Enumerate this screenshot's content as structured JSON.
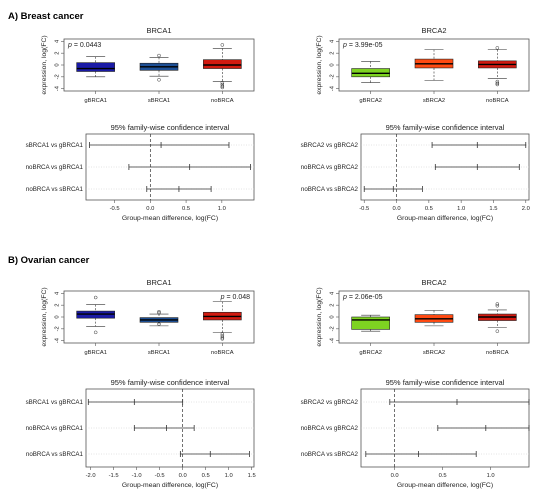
{
  "sections": [
    {
      "title": "A) Breast cancer",
      "panels": [
        {
          "box": {
            "title": "BRCA1",
            "pvalue_italic": "p",
            "pvalue_rest": " = 0.0443",
            "pvalue_pos": "top-left",
            "ylabel": "expression, log(FC)",
            "ylim": [
              -4.4,
              4.4
            ],
            "yticks": [
              "-4",
              "-2",
              "0",
              "2",
              "4"
            ],
            "categories": [
              "gBRCA1",
              "sBRCA1",
              "noBRCA"
            ],
            "colors": [
              "#1a1aa6",
              "#1d4f95",
              "#d21a10"
            ],
            "boxes": [
              {
                "low": -2.0,
                "q1": -1.1,
                "median": -0.6,
                "q3": 0.4,
                "high": 1.4,
                "outliers": []
              },
              {
                "low": -1.9,
                "q1": -0.9,
                "median": -0.3,
                "q3": 0.3,
                "high": 1.3,
                "outliers": [
                  1.6,
                  -2.5
                ]
              },
              {
                "low": -2.8,
                "q1": -0.6,
                "median": 0.0,
                "q3": 0.9,
                "high": 2.8,
                "outliers": [
                  3.4,
                  -3.0,
                  -3.3,
                  -3.6,
                  -3.8
                ]
              }
            ]
          },
          "ci": {
            "title": "95% family-wise confidence interval",
            "xlabel": "Group-mean difference, log(FC)",
            "xlim": [
              -0.9,
              1.45
            ],
            "xticks": [
              "-0.5",
              "0.0",
              "0.5",
              "1.0"
            ],
            "comparisons": [
              {
                "label": "sBRCA1 vs gBRCA1",
                "low": -0.85,
                "est": 0.15,
                "high": 1.1
              },
              {
                "label": "noBRCA vs gBRCA1",
                "low": -0.3,
                "est": 0.55,
                "high": 1.4
              },
              {
                "label": "noBRCA vs sBRCA1",
                "low": -0.05,
                "est": 0.4,
                "high": 0.85
              }
            ]
          }
        },
        {
          "box": {
            "title": "BRCA2",
            "pvalue_italic": "p",
            "pvalue_rest": " = 3.99e-05",
            "pvalue_pos": "top-left",
            "ylabel": "expression, log(FC)",
            "ylim": [
              -4.4,
              4.4
            ],
            "yticks": [
              "-4",
              "-2",
              "0",
              "2",
              "4"
            ],
            "categories": [
              "gBRCA2",
              "sBRCA2",
              "noBRCA"
            ],
            "colors": [
              "#7ed321",
              "#ff4a12",
              "#d21a10"
            ],
            "boxes": [
              {
                "low": -3.0,
                "q1": -2.0,
                "median": -1.4,
                "q3": -0.6,
                "high": 0.6,
                "outliers": []
              },
              {
                "low": -2.6,
                "q1": -0.5,
                "median": 0.2,
                "q3": 1.0,
                "high": 2.6,
                "outliers": []
              },
              {
                "low": -2.3,
                "q1": -0.5,
                "median": 0.1,
                "q3": 0.7,
                "high": 2.6,
                "outliers": [
                  2.9,
                  -2.8,
                  -3.1,
                  -3.3
                ]
              }
            ]
          },
          "ci": {
            "title": "95% family-wise confidence interval",
            "xlabel": "Group-mean difference, log(FC)",
            "xlim": [
              -0.55,
              2.05
            ],
            "xticks": [
              "-0.5",
              "0.0",
              "0.5",
              "1.0",
              "1.5",
              "2.0"
            ],
            "comparisons": [
              {
                "label": "sBRCA2 vs gBRCA2",
                "low": 0.55,
                "est": 1.25,
                "high": 2.0
              },
              {
                "label": "noBRCA vs gBRCA2",
                "low": 0.6,
                "est": 1.25,
                "high": 1.9
              },
              {
                "label": "noBRCA vs sBRCA2",
                "low": -0.5,
                "est": -0.05,
                "high": 0.4
              }
            ]
          }
        }
      ]
    },
    {
      "title": "B) Ovarian cancer",
      "panels": [
        {
          "box": {
            "title": "BRCA1",
            "pvalue_italic": "p",
            "pvalue_rest": " = 0.048",
            "pvalue_pos": "top-right",
            "ylabel": "expression, log(FC)",
            "ylim": [
              -4.4,
              4.4
            ],
            "yticks": [
              "-4",
              "-2",
              "0",
              "2",
              "4"
            ],
            "categories": [
              "gBRCA1",
              "sBRCA1",
              "noBRCA"
            ],
            "colors": [
              "#1a1aa6",
              "#1d4f95",
              "#d21a10"
            ],
            "boxes": [
              {
                "low": -1.6,
                "q1": -0.2,
                "median": 0.5,
                "q3": 1.0,
                "high": 2.1,
                "outliers": [
                  3.3,
                  -2.6
                ]
              },
              {
                "low": -1.5,
                "q1": -0.9,
                "median": -0.5,
                "q3": -0.1,
                "high": 0.5,
                "outliers": [
                  0.9,
                  0.7,
                  -1.2
                ]
              },
              {
                "low": -2.6,
                "q1": -0.5,
                "median": 0.1,
                "q3": 0.8,
                "high": 2.6,
                "outliers": [
                  -2.9,
                  -3.2,
                  -3.5,
                  -3.7
                ]
              }
            ]
          },
          "ci": {
            "title": "95% family-wise confidence interval",
            "xlabel": "Group-mean difference, log(FC)",
            "xlim": [
              -2.1,
              1.55
            ],
            "xticks": [
              "-2.0",
              "-1.5",
              "-1.0",
              "-0.5",
              "0.0",
              "0.5",
              "1.0",
              "1.5"
            ],
            "comparisons": [
              {
                "label": "sBRCA1 vs gBRCA1",
                "low": -2.05,
                "est": -1.05,
                "high": 0.0
              },
              {
                "label": "noBRCA vs gBRCA1",
                "low": -1.05,
                "est": -0.35,
                "high": 0.25
              },
              {
                "label": "noBRCA vs sBRCA1",
                "low": -0.05,
                "est": 0.6,
                "high": 1.45
              }
            ]
          }
        },
        {
          "box": {
            "title": "BRCA2",
            "pvalue_italic": "p",
            "pvalue_rest": " = 2.06e-05",
            "pvalue_pos": "top-left",
            "ylabel": "expression, log(FC)",
            "ylim": [
              -4.4,
              4.4
            ],
            "yticks": [
              "-4",
              "-2",
              "0",
              "2",
              "4"
            ],
            "categories": [
              "gBRCA2",
              "sBRCA2",
              "noBRCA"
            ],
            "colors": [
              "#7ed321",
              "#ff4a12",
              "#d21a10"
            ],
            "boxes": [
              {
                "low": -2.4,
                "q1": -2.1,
                "median": -0.5,
                "q3": 0.0,
                "high": 0.3,
                "outliers": []
              },
              {
                "low": -1.5,
                "q1": -0.9,
                "median": -0.3,
                "q3": 0.4,
                "high": 1.1,
                "outliers": []
              },
              {
                "low": -1.8,
                "q1": -0.6,
                "median": 0.0,
                "q3": 0.5,
                "high": 1.2,
                "outliers": [
                  2.2,
                  1.9,
                  -2.4
                ]
              }
            ]
          },
          "ci": {
            "title": "95% family-wise confidence interval",
            "xlabel": "Group-mean difference, log(FC)",
            "xlim": [
              -0.35,
              1.4
            ],
            "xticks": [
              "0.0",
              "0.5",
              "1.0"
            ],
            "comparisons": [
              {
                "label": "sBRCA2 vs gBRCA2",
                "low": -0.05,
                "est": 0.65,
                "high": 1.4
              },
              {
                "label": "noBRCA vs gBRCA2",
                "low": 0.45,
                "est": 0.95,
                "high": 1.4
              },
              {
                "label": "noBRCA vs sBRCA2",
                "low": -0.3,
                "est": 0.25,
                "high": 0.85
              }
            ]
          }
        }
      ]
    }
  ]
}
